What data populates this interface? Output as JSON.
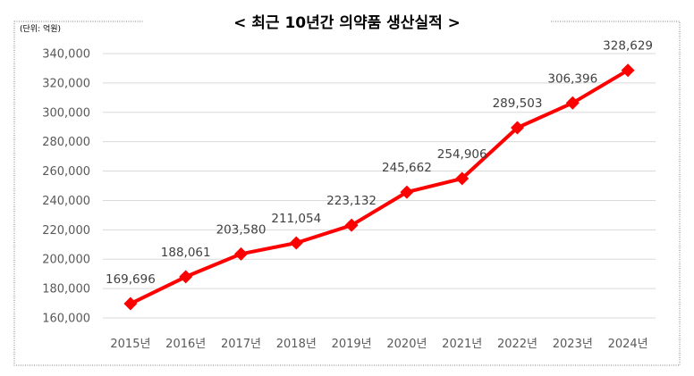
{
  "chart_data": {
    "type": "line",
    "title": "< 최근 10년간 의약품 생산실적 >",
    "unit_note": "(단위: 억원)",
    "categories": [
      "2015년",
      "2016년",
      "2017년",
      "2018년",
      "2019년",
      "2020년",
      "2021년",
      "2022년",
      "2023년",
      "2024년"
    ],
    "series": [
      {
        "values": [
          169696,
          188061,
          203580,
          211054,
          223132,
          245662,
          254906,
          289503,
          306396,
          328629
        ],
        "labels": [
          "169,696",
          "188,061",
          "203,580",
          "211,054",
          "223,132",
          "245,662",
          "254,906",
          "289,503",
          "306,396",
          "328,629"
        ],
        "color": "#ff0000",
        "marker": "diamond"
      }
    ],
    "ylim": [
      160000,
      340000
    ],
    "yticks": [
      160000,
      180000,
      200000,
      220000,
      240000,
      260000,
      280000,
      300000,
      320000,
      340000
    ],
    "ytick_labels": [
      "160,000",
      "180,000",
      "200,000",
      "220,000",
      "240,000",
      "260,000",
      "280,000",
      "300,000",
      "320,000",
      "340,000"
    ],
    "grid": true,
    "xlabel": "",
    "ylabel": ""
  },
  "colors": {
    "line": "#ff0000",
    "grid": "#d9d9d9",
    "border": "#808080"
  }
}
